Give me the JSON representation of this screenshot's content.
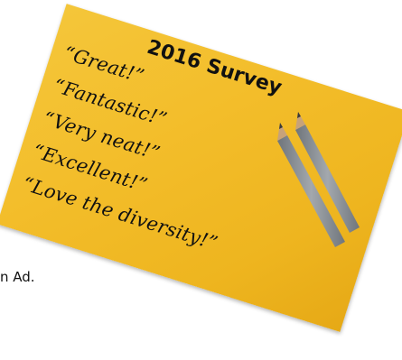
{
  "background_text": "n Ad.",
  "card": {
    "title": "2016 Survey",
    "quotes": [
      "“Great!”",
      "“Fantastic!”",
      "“Very neat!”",
      "“Excellent!”",
      "“Love the diversity!”"
    ]
  },
  "colors": {
    "card": "#f3bd2a",
    "pencil_body": "#8f949a",
    "pencil_tip": "#c7a27a",
    "lead": "#3a3a3a"
  },
  "icons": [
    "pencil-icon",
    "pencil-icon"
  ]
}
